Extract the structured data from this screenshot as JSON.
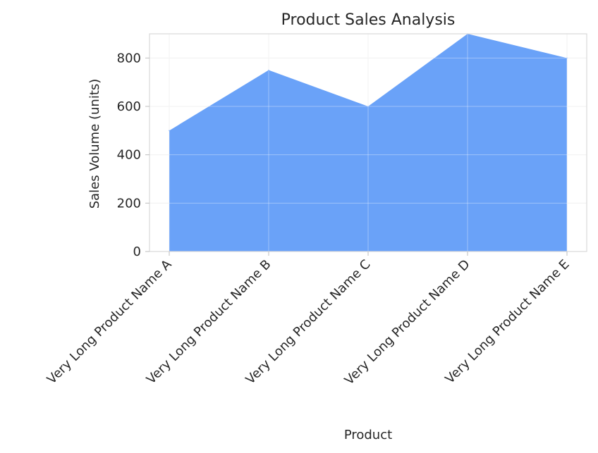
{
  "chart_data": {
    "type": "area",
    "title": "Product Sales Analysis",
    "xlabel": "Product",
    "ylabel": "Sales Volume (units)",
    "categories": [
      "Very Long Product Name A",
      "Very Long Product Name B",
      "Very Long Product Name C",
      "Very Long Product Name D",
      "Very Long Product Name E"
    ],
    "series": [
      {
        "values": [
          500,
          750,
          600,
          900,
          800
        ],
        "color": "#6aa2f8"
      }
    ],
    "ylim": [
      0,
      900
    ],
    "yticks": [
      0,
      200,
      400,
      600,
      800
    ],
    "grid": true,
    "legend": "none"
  }
}
